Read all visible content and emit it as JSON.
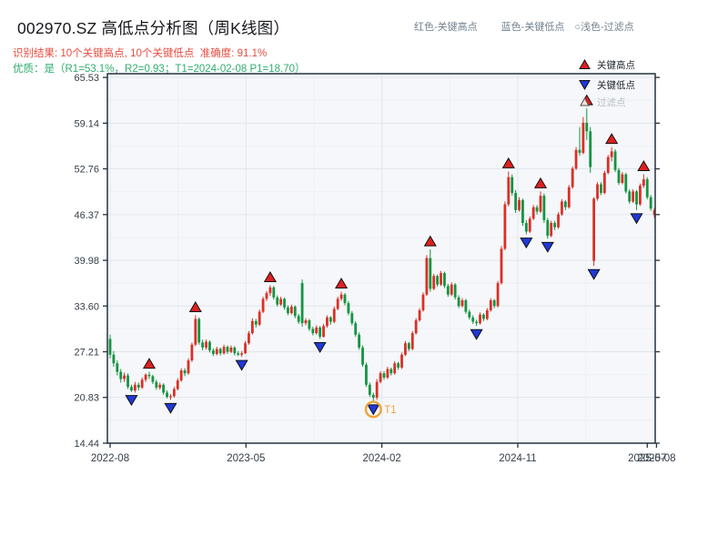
{
  "header": {
    "title": "002970.SZ 高低点分析图（周K线图）",
    "result_line": "识别结果: 10个关键高点, 10个关键低点  准确度: 91.1%",
    "quality_line": "优质：是（R1=53.1%，R2=0.93；T1=2024-02-08 P1=18.70）"
  },
  "legend_note": {
    "high": "红色-关键高点",
    "low": "蓝色-关键低点",
    "filtered": "○浅色-过滤点"
  },
  "chart_legend": {
    "key_high": "关键高点",
    "key_low": "关键低点",
    "filtered": "过滤点"
  },
  "colors": {
    "up": "#d93026",
    "down": "#149441",
    "key_high": "#e02020",
    "key_low": "#2038d8",
    "filtered_fill": "#f9ded7",
    "t1": "#f0a23c",
    "plot_bg": "#f5f7fa",
    "grid_major": "#e2e6ed",
    "grid_minor": "#edf0f5",
    "spine": "#243240",
    "tick_label": "#333d47"
  },
  "chart_data": {
    "type": "candlestick",
    "title": "002970.SZ 高低点分析图（周K线图）",
    "ylim": [
      14.44,
      66.05
    ],
    "yticks": [
      "65.53",
      "59.14",
      "52.76",
      "46.37",
      "39.98",
      "33.60",
      "27.21",
      "20.83",
      "14.44"
    ],
    "xticks": [
      {
        "i": 0,
        "label": "2022-08",
        "grid": true
      },
      {
        "i": 38.2,
        "label": "2023-05",
        "grid": true
      },
      {
        "i": 76.4,
        "label": "2024-02",
        "grid": true
      },
      {
        "i": 114.6,
        "label": "2024-11",
        "grid": true
      },
      {
        "i": 151.0,
        "label": "2025-07",
        "grid": false
      },
      {
        "i": 153.6,
        "label": "2025-08",
        "grid": false
      }
    ],
    "x_minors": [
      19.1,
      57.3,
      95.5,
      133.7
    ],
    "key_high_indices": [
      11,
      24,
      45,
      65,
      90,
      112,
      121,
      134,
      141,
      150
    ],
    "key_low_indices": [
      6,
      17,
      37,
      59,
      74,
      103,
      117,
      123,
      136,
      148
    ],
    "t1": {
      "index": 74,
      "label": "T1",
      "date": "2024-02-08",
      "price": "18.70"
    },
    "candles": [
      [
        29.0,
        29.6,
        26.3,
        26.8
      ],
      [
        26.8,
        27.3,
        25.1,
        25.6
      ],
      [
        25.6,
        26.0,
        23.9,
        24.4
      ],
      [
        24.4,
        24.8,
        22.9,
        23.4
      ],
      [
        23.4,
        24.3,
        23.0,
        23.9
      ],
      [
        23.9,
        24.2,
        22.0,
        22.3
      ],
      [
        22.3,
        22.6,
        21.6,
        21.8
      ],
      [
        21.8,
        23.0,
        21.5,
        22.6
      ],
      [
        22.6,
        22.9,
        21.8,
        22.2
      ],
      [
        22.2,
        23.6,
        22.0,
        23.3
      ],
      [
        23.3,
        24.2,
        23.0,
        24.0
      ],
      [
        24.0,
        24.4,
        23.4,
        23.8
      ],
      [
        23.8,
        24.0,
        22.7,
        23.0
      ],
      [
        23.0,
        23.3,
        21.9,
        22.2
      ],
      [
        22.2,
        22.9,
        21.9,
        22.6
      ],
      [
        22.6,
        22.8,
        21.2,
        21.5
      ],
      [
        21.5,
        21.8,
        20.7,
        20.9
      ],
      [
        20.9,
        21.3,
        20.5,
        21.0
      ],
      [
        21.0,
        22.3,
        20.8,
        22.0
      ],
      [
        22.0,
        23.5,
        21.8,
        23.2
      ],
      [
        23.2,
        24.9,
        23.0,
        24.6
      ],
      [
        24.6,
        24.9,
        23.8,
        24.2
      ],
      [
        24.2,
        26.3,
        24.0,
        26.0
      ],
      [
        26.0,
        28.5,
        25.8,
        28.2
      ],
      [
        28.2,
        32.3,
        28.0,
        31.8
      ],
      [
        31.8,
        32.0,
        28.2,
        28.5
      ],
      [
        28.5,
        28.9,
        27.4,
        27.8
      ],
      [
        27.8,
        28.9,
        27.5,
        28.6
      ],
      [
        28.6,
        28.8,
        27.1,
        27.4
      ],
      [
        27.4,
        27.7,
        26.6,
        26.9
      ],
      [
        26.9,
        27.9,
        26.7,
        27.6
      ],
      [
        27.6,
        27.8,
        26.7,
        27.0
      ],
      [
        27.0,
        28.2,
        26.8,
        27.9
      ],
      [
        27.9,
        28.1,
        26.9,
        27.2
      ],
      [
        27.2,
        28.1,
        27.0,
        27.8
      ],
      [
        27.8,
        28.0,
        26.7,
        27.0
      ],
      [
        27.0,
        27.3,
        26.6,
        26.8
      ],
      [
        26.8,
        27.3,
        26.5,
        27.0
      ],
      [
        27.0,
        28.7,
        26.9,
        28.4
      ],
      [
        28.4,
        30.1,
        28.2,
        29.8
      ],
      [
        29.8,
        31.9,
        29.6,
        31.5
      ],
      [
        31.5,
        31.8,
        30.6,
        31.0
      ],
      [
        31.0,
        33.1,
        30.8,
        32.8
      ],
      [
        32.8,
        34.9,
        32.6,
        34.6
      ],
      [
        34.6,
        35.7,
        34.3,
        35.4
      ],
      [
        35.4,
        36.5,
        35.0,
        36.2
      ],
      [
        36.2,
        36.4,
        34.5,
        34.8
      ],
      [
        34.8,
        35.1,
        33.5,
        33.8
      ],
      [
        33.8,
        34.9,
        33.6,
        34.6
      ],
      [
        34.6,
        34.8,
        33.1,
        33.4
      ],
      [
        33.4,
        33.7,
        32.3,
        32.6
      ],
      [
        32.6,
        33.8,
        32.4,
        33.5
      ],
      [
        33.5,
        33.7,
        31.9,
        32.2
      ],
      [
        32.2,
        32.5,
        31.1,
        31.4
      ],
      [
        36.8,
        37.3,
        30.7,
        31.2
      ],
      [
        31.2,
        31.9,
        30.9,
        31.6
      ],
      [
        31.6,
        31.8,
        30.1,
        30.4
      ],
      [
        30.4,
        30.7,
        29.5,
        29.8
      ],
      [
        29.8,
        30.9,
        29.6,
        30.6
      ],
      [
        30.6,
        30.8,
        29.0,
        29.3
      ],
      [
        29.3,
        31.1,
        29.2,
        30.8
      ],
      [
        30.8,
        32.3,
        30.6,
        32.0
      ],
      [
        32.0,
        32.2,
        31.0,
        31.4
      ],
      [
        31.4,
        33.5,
        31.2,
        33.2
      ],
      [
        33.2,
        34.9,
        33.0,
        34.6
      ],
      [
        34.6,
        35.6,
        34.3,
        35.2
      ],
      [
        35.2,
        35.4,
        33.7,
        34.0
      ],
      [
        34.0,
        34.3,
        32.3,
        32.6
      ],
      [
        32.6,
        32.9,
        30.9,
        31.2
      ],
      [
        31.2,
        31.5,
        29.3,
        29.6
      ],
      [
        29.6,
        29.9,
        27.5,
        27.8
      ],
      [
        27.8,
        28.1,
        25.1,
        25.4
      ],
      [
        25.4,
        25.7,
        22.3,
        22.6
      ],
      [
        22.6,
        22.9,
        20.9,
        21.2
      ],
      [
        21.2,
        21.5,
        20.3,
        20.8
      ],
      [
        20.8,
        23.4,
        20.5,
        23.0
      ],
      [
        23.0,
        24.5,
        22.8,
        24.2
      ],
      [
        24.2,
        24.5,
        23.3,
        23.6
      ],
      [
        23.6,
        25.1,
        23.4,
        24.8
      ],
      [
        24.8,
        25.0,
        23.9,
        24.2
      ],
      [
        24.2,
        25.9,
        24.0,
        25.6
      ],
      [
        25.6,
        25.8,
        24.7,
        25.0
      ],
      [
        25.0,
        27.1,
        24.8,
        26.8
      ],
      [
        26.8,
        28.7,
        26.6,
        28.4
      ],
      [
        28.4,
        28.6,
        27.3,
        27.6
      ],
      [
        27.6,
        30.1,
        27.4,
        29.8
      ],
      [
        29.8,
        31.9,
        29.6,
        31.6
      ],
      [
        31.6,
        33.3,
        31.4,
        33.0
      ],
      [
        33.0,
        35.5,
        32.8,
        35.2
      ],
      [
        35.2,
        40.7,
        35.0,
        40.3
      ],
      [
        40.3,
        41.5,
        35.6,
        36.0
      ],
      [
        36.0,
        38.1,
        35.8,
        37.8
      ],
      [
        37.8,
        38.0,
        36.3,
        36.6
      ],
      [
        36.6,
        38.5,
        36.4,
        38.2
      ],
      [
        38.2,
        38.4,
        36.1,
        36.4
      ],
      [
        36.4,
        36.7,
        34.9,
        35.2
      ],
      [
        35.2,
        36.9,
        35.0,
        36.6
      ],
      [
        36.6,
        36.8,
        34.5,
        34.8
      ],
      [
        34.8,
        35.1,
        33.3,
        33.6
      ],
      [
        33.6,
        34.7,
        33.4,
        34.4
      ],
      [
        34.4,
        34.6,
        32.5,
        32.8
      ],
      [
        32.8,
        33.1,
        31.7,
        32.0
      ],
      [
        32.0,
        32.3,
        31.1,
        31.4
      ],
      [
        31.4,
        31.7,
        30.8,
        31.2
      ],
      [
        31.2,
        32.7,
        31.0,
        32.4
      ],
      [
        32.4,
        32.6,
        31.5,
        31.8
      ],
      [
        31.8,
        33.3,
        31.6,
        33.0
      ],
      [
        33.0,
        34.7,
        32.8,
        34.4
      ],
      [
        34.4,
        34.6,
        33.3,
        33.6
      ],
      [
        33.6,
        37.1,
        33.4,
        36.8
      ],
      [
        36.8,
        42.0,
        36.6,
        41.6
      ],
      [
        41.6,
        48.2,
        41.4,
        47.8
      ],
      [
        47.8,
        52.4,
        47.5,
        51.6
      ],
      [
        51.6,
        52.0,
        49.0,
        49.4
      ],
      [
        49.4,
        49.8,
        46.6,
        47.0
      ],
      [
        47.0,
        48.8,
        46.8,
        48.4
      ],
      [
        48.4,
        48.6,
        44.8,
        45.2
      ],
      [
        45.2,
        45.6,
        43.6,
        44.0
      ],
      [
        44.0,
        46.1,
        43.8,
        45.8
      ],
      [
        45.8,
        47.7,
        45.6,
        47.4
      ],
      [
        47.4,
        47.7,
        46.4,
        46.8
      ],
      [
        46.8,
        49.6,
        46.6,
        49.0
      ],
      [
        49.0,
        49.3,
        45.2,
        45.6
      ],
      [
        45.6,
        45.9,
        43.0,
        43.4
      ],
      [
        43.4,
        45.5,
        43.2,
        45.2
      ],
      [
        45.2,
        45.5,
        44.2,
        44.6
      ],
      [
        44.6,
        46.7,
        44.4,
        46.4
      ],
      [
        46.4,
        48.5,
        46.2,
        48.2
      ],
      [
        48.2,
        48.4,
        47.0,
        47.4
      ],
      [
        47.4,
        50.5,
        47.2,
        50.2
      ],
      [
        50.2,
        53.1,
        50.0,
        52.8
      ],
      [
        52.8,
        55.8,
        52.6,
        55.4
      ],
      [
        55.4,
        58.6,
        54.6,
        55.0
      ],
      [
        55.0,
        60.0,
        54.8,
        59.2
      ],
      [
        59.2,
        61.2,
        56.8,
        58.0
      ],
      [
        58.0,
        58.6,
        52.2,
        53.0
      ],
      [
        39.9,
        48.8,
        39.2,
        48.6
      ],
      [
        48.6,
        50.9,
        48.3,
        50.6
      ],
      [
        50.6,
        50.9,
        49.1,
        49.4
      ],
      [
        49.4,
        52.5,
        49.2,
        52.2
      ],
      [
        52.2,
        54.7,
        52.0,
        54.4
      ],
      [
        54.4,
        55.8,
        53.8,
        55.2
      ],
      [
        55.2,
        55.5,
        52.3,
        52.6
      ],
      [
        52.6,
        52.9,
        50.5,
        50.8
      ],
      [
        50.8,
        52.3,
        50.6,
        52.0
      ],
      [
        52.0,
        52.2,
        49.3,
        49.6
      ],
      [
        49.6,
        49.9,
        47.9,
        48.2
      ],
      [
        48.2,
        49.9,
        48.0,
        49.6
      ],
      [
        49.6,
        49.8,
        47.0,
        47.8
      ],
      [
        47.8,
        50.7,
        47.6,
        50.4
      ],
      [
        50.4,
        52.0,
        50.1,
        51.3
      ],
      [
        51.3,
        51.6,
        48.5,
        48.8
      ],
      [
        48.8,
        49.1,
        46.9,
        47.2
      ],
      [
        46.3,
        47.3,
        45.9,
        47.0
      ]
    ]
  }
}
